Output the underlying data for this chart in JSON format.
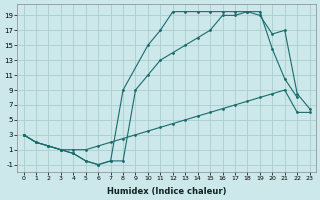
{
  "xlabel": "Humidex (Indice chaleur)",
  "bg_color": "#cce8ea",
  "grid_color": "#aacdd0",
  "line_color": "#1a6b6b",
  "xlim": [
    -0.5,
    23.5
  ],
  "ylim": [
    -2,
    20.5
  ],
  "xticks": [
    0,
    1,
    2,
    3,
    4,
    5,
    6,
    7,
    8,
    9,
    10,
    11,
    12,
    13,
    14,
    15,
    16,
    17,
    18,
    19,
    20,
    21,
    22,
    23
  ],
  "yticks": [
    -1,
    1,
    3,
    5,
    7,
    9,
    11,
    13,
    15,
    17,
    19
  ],
  "line1_x": [
    0,
    1,
    2,
    3,
    4,
    5,
    6,
    7,
    8,
    9,
    10,
    11,
    12,
    13,
    14,
    15,
    16,
    17,
    18,
    19,
    20,
    21,
    22,
    23
  ],
  "line1_y": [
    3,
    2,
    1.5,
    1,
    1,
    1,
    1.5,
    2,
    2.5,
    3,
    3.5,
    4,
    4.5,
    5,
    5.5,
    6,
    6.5,
    7,
    7.5,
    8,
    8.5,
    9,
    6,
    6
  ],
  "line2_x": [
    0,
    1,
    2,
    3,
    4,
    5,
    6,
    7,
    8,
    9,
    10,
    11,
    12,
    13,
    14,
    15,
    16,
    17,
    18,
    19,
    20,
    21,
    22
  ],
  "line2_y": [
    3,
    2,
    1.5,
    1,
    0.5,
    -0.5,
    -1,
    -0.5,
    -0.5,
    9,
    11,
    13,
    14,
    15,
    16,
    17,
    19,
    19,
    19.5,
    19.5,
    14.5,
    10.5,
    8
  ],
  "line3_x": [
    0,
    1,
    2,
    3,
    4,
    5,
    6,
    7,
    8,
    10,
    11,
    12,
    13,
    14,
    15,
    16,
    17,
    18,
    19,
    20,
    21,
    22,
    23
  ],
  "line3_y": [
    3,
    2,
    1.5,
    1,
    0.5,
    -0.5,
    -1,
    -0.5,
    9,
    15,
    17,
    19.5,
    19.5,
    19.5,
    19.5,
    19.5,
    19.5,
    19.5,
    19,
    16.5,
    17,
    8.5,
    6.5
  ]
}
